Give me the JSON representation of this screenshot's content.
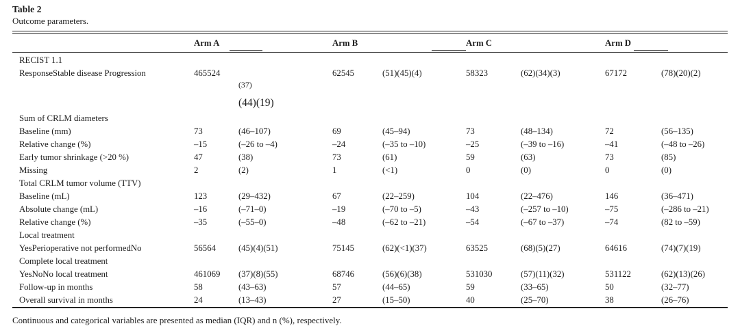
{
  "title": "Table 2",
  "caption": "Outcome parameters.",
  "footnote": "Continuous and categorical variables are presented as median (IQR) and n (%), respectively.",
  "arm_headers": [
    "Arm A",
    "Arm B",
    "Arm C",
    "Arm D"
  ],
  "column_pairs_note": "each arm has a value column and an (IQR)/(%) column",
  "rows": [
    {
      "type": "section",
      "label": "RECIST 1.1"
    },
    {
      "type": "response",
      "label": "ResponseStable disease Progression",
      "cells": [
        "465524",
        "",
        "62545",
        "(51)(45)(4)",
        "58323",
        "(62)(34)(3)",
        "67172",
        "(78)(20)(2)"
      ],
      "extra_small": "(37)",
      "extra_large": "(44)(19)"
    },
    {
      "type": "section",
      "label": "Sum of CRLM diameters"
    },
    {
      "type": "data",
      "label": "Baseline (mm)",
      "cells": [
        "73",
        "(46–107)",
        "69",
        "(45–94)",
        "73",
        "(48–134)",
        "72",
        "(56–135)"
      ]
    },
    {
      "type": "data",
      "label": "Relative change (%)",
      "cells": [
        "–15",
        "(–26 to –4)",
        "–24",
        "(–35 to –10)",
        "–25",
        "(–39 to –16)",
        "–41",
        "(–48 to –26)"
      ]
    },
    {
      "type": "data",
      "label": "Early tumor shrinkage (>20 %)",
      "cells": [
        "47",
        "(38)",
        "73",
        "(61)",
        "59",
        "(63)",
        "73",
        "(85)"
      ]
    },
    {
      "type": "data",
      "label": "Missing",
      "cells": [
        "2",
        "(2)",
        "1",
        "(<1)",
        "0",
        "(0)",
        "0",
        "(0)"
      ]
    },
    {
      "type": "section",
      "label": "Total CRLM tumor volume (TTV)"
    },
    {
      "type": "data",
      "label": "Baseline (mL)",
      "cells": [
        "123",
        "(29–432)",
        "67",
        "(22–259)",
        "104",
        "(22–476)",
        "146",
        "(36–471)"
      ]
    },
    {
      "type": "data",
      "label": "Absolute change (mL)",
      "cells": [
        "–16",
        "(–71–0)",
        "–19",
        "(–70 to –5)",
        "–43",
        "(–257 to –10)",
        "–75",
        "(–286 to –21)"
      ]
    },
    {
      "type": "data",
      "label": "Relative change (%)",
      "cells": [
        "–35",
        "(–55–0)",
        "–48",
        "(–62 to –21)",
        "–54",
        "(–67 to –37)",
        "–74",
        "(82 to –59)"
      ]
    },
    {
      "type": "section",
      "label": "Local treatment"
    },
    {
      "type": "data",
      "label": "YesPerioperative not performedNo",
      "cells": [
        "56564",
        "(45)(4)(51)",
        "75145",
        "(62)(<1)(37)",
        "63525",
        "(68)(5)(27)",
        "64616",
        "(74)(7)(19)"
      ]
    },
    {
      "type": "section",
      "label": "Complete local treatment"
    },
    {
      "type": "data",
      "label": "YesNoNo local treatment",
      "cells": [
        "461069",
        "(37)(8)(55)",
        "68746",
        "(56)(6)(38)",
        "531030",
        "(57)(11)(32)",
        "531122",
        "(62)(13)(26)"
      ]
    },
    {
      "type": "data",
      "label": "Follow-up in months",
      "cells": [
        "58",
        "(43–63)",
        "57",
        "(44–65)",
        "59",
        "(33–65)",
        "50",
        "(32–77)"
      ]
    },
    {
      "type": "data",
      "label": "Overall survival in months",
      "cells": [
        "24",
        "(13–43)",
        "27",
        "(15–50)",
        "40",
        "(25–70)",
        "38",
        "(26–76)"
      ]
    }
  ],
  "colors": {
    "text": "#1c1c1c",
    "rule": "#232323"
  }
}
